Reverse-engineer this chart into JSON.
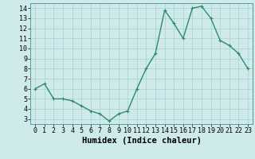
{
  "x": [
    0,
    1,
    2,
    3,
    4,
    5,
    6,
    7,
    8,
    9,
    10,
    11,
    12,
    13,
    14,
    15,
    16,
    17,
    18,
    19,
    20,
    21,
    22,
    23
  ],
  "y": [
    6.0,
    6.5,
    5.0,
    5.0,
    4.8,
    4.3,
    3.8,
    3.5,
    2.8,
    3.5,
    3.8,
    6.0,
    8.0,
    9.5,
    13.8,
    12.5,
    11.0,
    14.0,
    14.2,
    13.0,
    10.8,
    10.3,
    9.5,
    8.0
  ],
  "line_color": "#2e8b6e",
  "marker": "+",
  "marker_size": 3,
  "bg_color": "#ceeaea",
  "grid_color": "#aacfcf",
  "xlabel": "Humidex (Indice chaleur)",
  "xlim": [
    -0.5,
    23.5
  ],
  "ylim": [
    2.5,
    14.5
  ],
  "yticks": [
    3,
    4,
    5,
    6,
    7,
    8,
    9,
    10,
    11,
    12,
    13,
    14
  ],
  "xticks": [
    0,
    1,
    2,
    3,
    4,
    5,
    6,
    7,
    8,
    9,
    10,
    11,
    12,
    13,
    14,
    15,
    16,
    17,
    18,
    19,
    20,
    21,
    22,
    23
  ],
  "tick_label_fontsize": 6,
  "xlabel_fontsize": 7.5,
  "line_width": 1.0
}
